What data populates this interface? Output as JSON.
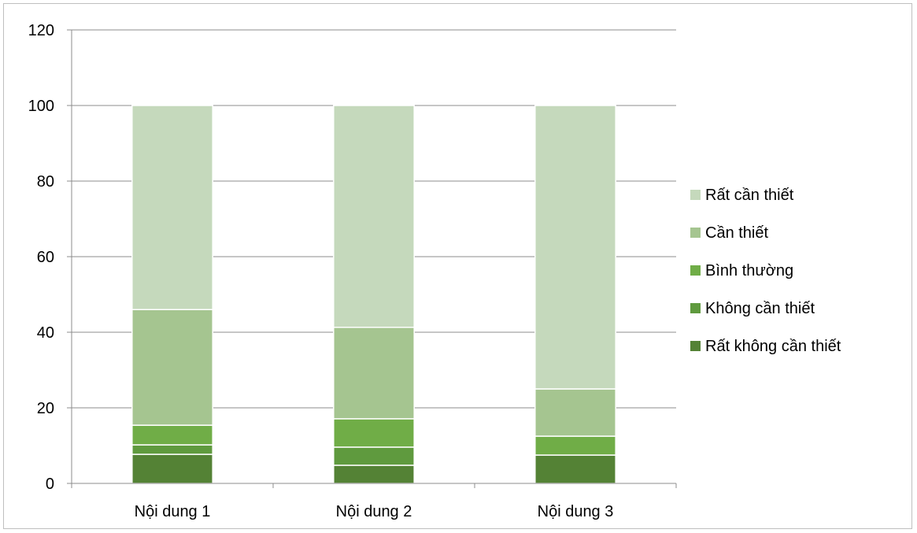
{
  "chart_data": {
    "type": "bar",
    "stacked": true,
    "categories": [
      "Nội dung 1",
      "Nội dung 2",
      "Nội dung 3"
    ],
    "series": [
      {
        "name": "Rất không cần thiết",
        "color": "#548235",
        "values": [
          7.7,
          4.8,
          7.5
        ]
      },
      {
        "name": "Không cần thiết",
        "color": "#5f9a3e",
        "values": [
          2.5,
          4.8,
          0
        ]
      },
      {
        "name": "Bình thường",
        "color": "#70ad47",
        "values": [
          5.2,
          7.5,
          5.0
        ]
      },
      {
        "name": "Cần thiết",
        "color": "#a5c590",
        "values": [
          30.6,
          24.2,
          12.5
        ]
      },
      {
        "name": "Rất cần thiết",
        "color": "#c5d9bc",
        "values": [
          54.0,
          58.7,
          75.0
        ]
      }
    ],
    "y_ticks": [
      "0",
      "20",
      "40",
      "60",
      "80",
      "100",
      "120"
    ],
    "ylim": [
      0,
      120
    ],
    "grid": true,
    "legend_position": "right"
  }
}
